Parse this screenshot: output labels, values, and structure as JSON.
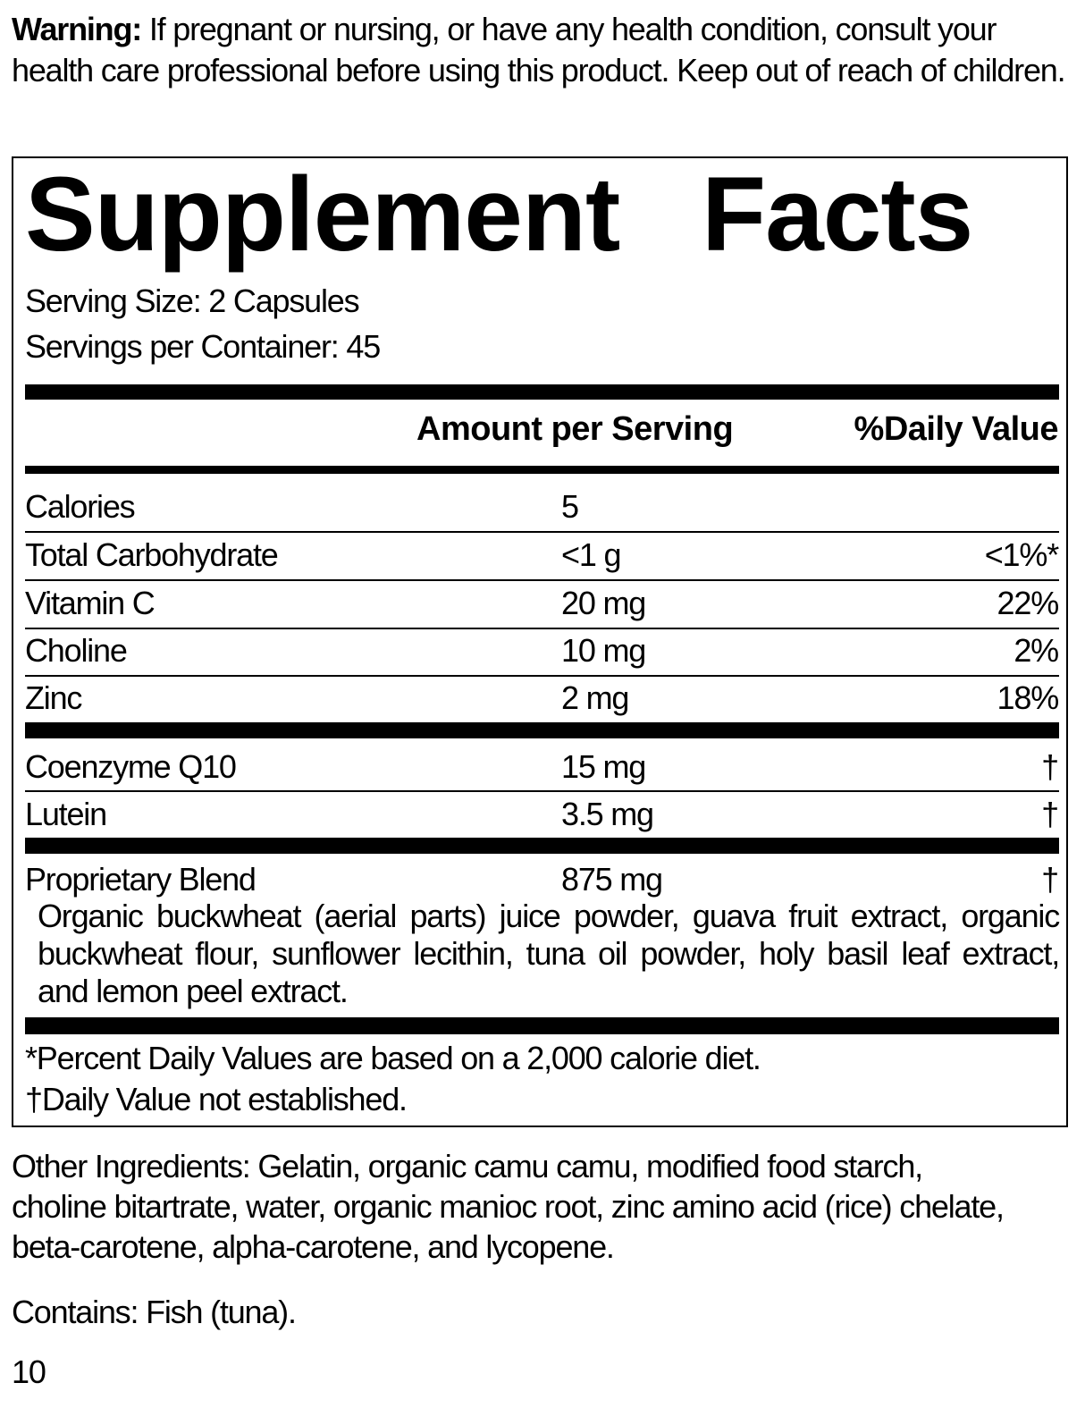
{
  "warning": {
    "label": "Warning:",
    "text": " If pregnant or nursing, or have any health condition, consult your health care professional before using this product. Keep out of reach of children."
  },
  "facts": {
    "title": "Supplement Facts",
    "serving_size": "Serving Size: 2 Capsules",
    "servings_per_container": "Servings per Container: 45",
    "header_amount": "Amount per Serving",
    "header_dv": "%Daily Value",
    "rows": [
      {
        "name": "Calories",
        "amount": "5",
        "dv": ""
      },
      {
        "name": "Total Carbohydrate",
        "amount": "<1 g",
        "dv": "<1%*"
      },
      {
        "name": "Vitamin C",
        "amount": "20 mg",
        "dv": "22%"
      },
      {
        "name": "Choline",
        "amount": "10 mg",
        "dv": "2%"
      },
      {
        "name": "Zinc",
        "amount": "2 mg",
        "dv": "18%"
      },
      {
        "name": "Coenzyme Q10",
        "amount": "15 mg",
        "dv": "†"
      },
      {
        "name": "Lutein",
        "amount": "3.5 mg",
        "dv": "†"
      },
      {
        "name": "Proprietary Blend",
        "amount": "875 mg",
        "dv": "†"
      }
    ],
    "blend_description": "Organic buckwheat (aerial parts) juice powder, guava fruit extract, organic buckwheat flour, sunflower lecithin, tuna oil powder, holy basil leaf extract, and lemon peel extract.",
    "footnote_1": "*Percent Daily Values are based on a 2,000 calorie diet.",
    "footnote_2": "†Daily Value not established."
  },
  "other_ingredients": "Other Ingredients: Gelatin, organic camu camu, modified food starch, choline bitartrate, water, organic manioc root, zinc amino acid (rice) chelate, beta-carotene, alpha-carotene, and lycopene.",
  "contains": "Contains: Fish (tuna).",
  "page_number": "10"
}
